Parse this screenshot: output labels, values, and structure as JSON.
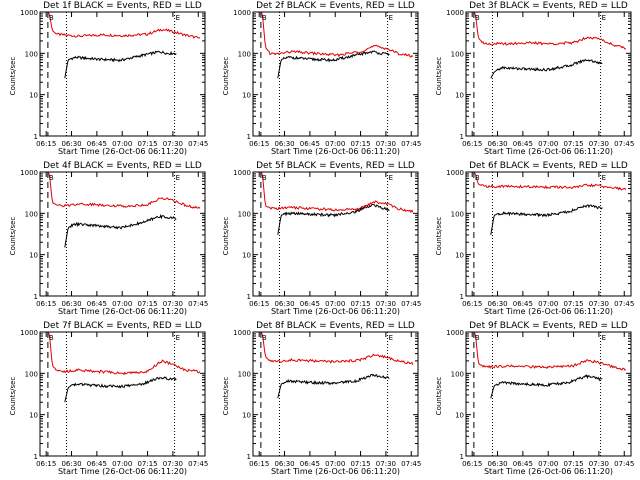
{
  "chart_data": {
    "type": "line",
    "shared": {
      "xlabel": "Start Time (26-Oct-06 06:11:20)",
      "ylabel": "Counts/sec",
      "x_ticks": [
        "06:15",
        "06:30",
        "06:45",
        "07:00",
        "07:15",
        "07:30",
        "07:45"
      ],
      "x_range": [
        "06:11:20",
        "07:49:00"
      ],
      "y_scale": "log",
      "y_range": [
        1,
        1000
      ],
      "y_ticks": [
        "1",
        "10",
        "100",
        "1000"
      ],
      "markers": [
        {
          "type": "dashed",
          "time": "06:16:00"
        },
        {
          "type": "dotted",
          "time": "06:27:00"
        },
        {
          "type": "dotted",
          "time": "07:31:00"
        }
      ],
      "corner_labels": [
        "B",
        "E"
      ],
      "series_colors": {
        "events": "#000000",
        "lld": "#e00000"
      }
    },
    "panels": [
      {
        "title": "Det 1f BLACK = Events, RED = LLD",
        "series": [
          {
            "key": "lld",
            "start": "06:16:00",
            "end": "07:46:00",
            "t": [
              0,
              0.01,
              0.03,
              0.06,
              0.1,
              0.2,
              0.35,
              0.5,
              0.65,
              0.75,
              0.83,
              0.9,
              1
            ],
            "v": [
              1000,
              900,
              350,
              290,
              280,
              260,
              280,
              270,
              290,
              380,
              330,
              280,
              230
            ]
          },
          {
            "key": "events",
            "start": "06:26:00",
            "end": "07:32:00",
            "t": [
              0,
              0.03,
              0.06,
              0.1,
              0.3,
              0.5,
              0.7,
              0.85,
              0.92,
              1
            ],
            "v": [
              25,
              70,
              75,
              80,
              72,
              68,
              90,
              110,
              100,
              100
            ]
          }
        ]
      },
      {
        "title": "Det 2f BLACK = Events, RED = LLD",
        "series": [
          {
            "key": "lld",
            "start": "06:16:00",
            "end": "07:46:00",
            "t": [
              0,
              0.01,
              0.03,
              0.06,
              0.1,
              0.2,
              0.35,
              0.5,
              0.65,
              0.75,
              0.83,
              0.9,
              1
            ],
            "v": [
              1000,
              900,
              140,
              100,
              95,
              110,
              100,
              90,
              110,
              150,
              130,
              100,
              85
            ]
          },
          {
            "key": "events",
            "start": "06:26:00",
            "end": "07:32:00",
            "t": [
              0,
              0.03,
              0.06,
              0.1,
              0.3,
              0.5,
              0.7,
              0.85,
              0.92,
              1
            ],
            "v": [
              25,
              70,
              75,
              80,
              72,
              68,
              90,
              110,
              100,
              95
            ]
          }
        ]
      },
      {
        "title": "Det 3f BLACK = Events, RED = LLD",
        "series": [
          {
            "key": "lld",
            "start": "06:16:00",
            "end": "07:46:00",
            "t": [
              0,
              0.01,
              0.03,
              0.06,
              0.1,
              0.2,
              0.35,
              0.5,
              0.65,
              0.75,
              0.83,
              0.9,
              1
            ],
            "v": [
              1000,
              900,
              230,
              180,
              170,
              170,
              180,
              170,
              180,
              250,
              220,
              170,
              130
            ]
          },
          {
            "key": "events",
            "start": "06:26:00",
            "end": "07:32:00",
            "t": [
              0,
              0.03,
              0.06,
              0.1,
              0.3,
              0.5,
              0.7,
              0.85,
              0.92,
              1
            ],
            "v": [
              25,
              35,
              40,
              45,
              42,
              40,
              50,
              70,
              65,
              55
            ]
          }
        ]
      },
      {
        "title": "Det 4f BLACK = Events, RED = LLD",
        "series": [
          {
            "key": "lld",
            "start": "06:16:00",
            "end": "07:46:00",
            "t": [
              0,
              0.01,
              0.03,
              0.06,
              0.1,
              0.2,
              0.35,
              0.5,
              0.65,
              0.75,
              0.83,
              0.9,
              1
            ],
            "v": [
              1000,
              900,
              180,
              160,
              150,
              170,
              160,
              150,
              160,
              240,
              200,
              160,
              130
            ]
          },
          {
            "key": "events",
            "start": "06:26:00",
            "end": "07:32:00",
            "t": [
              0,
              0.03,
              0.06,
              0.1,
              0.3,
              0.5,
              0.7,
              0.85,
              0.92,
              1
            ],
            "v": [
              15,
              45,
              50,
              55,
              50,
              45,
              60,
              85,
              80,
              75
            ]
          }
        ]
      },
      {
        "title": "Det 5f BLACK = Events, RED = LLD",
        "series": [
          {
            "key": "lld",
            "start": "06:16:00",
            "end": "07:46:00",
            "t": [
              0,
              0.01,
              0.03,
              0.06,
              0.1,
              0.2,
              0.35,
              0.5,
              0.65,
              0.75,
              0.83,
              0.9,
              1
            ],
            "v": [
              1000,
              900,
              150,
              135,
              130,
              140,
              130,
              120,
              130,
              190,
              170,
              130,
              110
            ]
          },
          {
            "key": "events",
            "start": "06:26:00",
            "end": "07:32:00",
            "t": [
              0,
              0.03,
              0.06,
              0.1,
              0.3,
              0.5,
              0.7,
              0.85,
              0.92,
              1
            ],
            "v": [
              30,
              90,
              95,
              100,
              95,
              90,
              110,
              160,
              140,
              120
            ]
          }
        ]
      },
      {
        "title": "Det 6f BLACK = Events, RED = LLD",
        "series": [
          {
            "key": "lld",
            "start": "06:16:00",
            "end": "07:46:00",
            "t": [
              0,
              0.01,
              0.03,
              0.06,
              0.1,
              0.2,
              0.35,
              0.5,
              0.65,
              0.75,
              0.83,
              0.9,
              1
            ],
            "v": [
              1000,
              900,
              500,
              460,
              450,
              450,
              440,
              430,
              420,
              480,
              460,
              420,
              380
            ]
          },
          {
            "key": "events",
            "start": "06:26:00",
            "end": "07:32:00",
            "t": [
              0,
              0.03,
              0.06,
              0.1,
              0.3,
              0.5,
              0.7,
              0.85,
              0.92,
              1
            ],
            "v": [
              30,
              90,
              95,
              100,
              95,
              90,
              110,
              150,
              150,
              130
            ]
          }
        ]
      },
      {
        "title": "Det 7f BLACK = Events, RED = LLD",
        "series": [
          {
            "key": "lld",
            "start": "06:16:00",
            "end": "07:46:00",
            "t": [
              0,
              0.01,
              0.03,
              0.06,
              0.1,
              0.2,
              0.35,
              0.5,
              0.65,
              0.75,
              0.83,
              0.9,
              1
            ],
            "v": [
              1000,
              900,
              150,
              120,
              110,
              120,
              110,
              100,
              110,
              200,
              160,
              120,
              110
            ]
          },
          {
            "key": "events",
            "start": "06:26:00",
            "end": "07:32:00",
            "t": [
              0,
              0.03,
              0.06,
              0.1,
              0.3,
              0.5,
              0.7,
              0.85,
              0.92,
              1
            ],
            "v": [
              20,
              45,
              50,
              55,
              50,
              48,
              55,
              80,
              75,
              70
            ]
          }
        ]
      },
      {
        "title": "Det 8f BLACK = Events, RED = LLD",
        "series": [
          {
            "key": "lld",
            "start": "06:16:00",
            "end": "07:46:00",
            "t": [
              0,
              0.01,
              0.03,
              0.06,
              0.1,
              0.2,
              0.35,
              0.5,
              0.65,
              0.75,
              0.83,
              0.9,
              1
            ],
            "v": [
              1000,
              900,
              250,
              200,
              190,
              210,
              200,
              190,
              210,
              280,
              240,
              200,
              170
            ]
          },
          {
            "key": "events",
            "start": "06:26:00",
            "end": "07:32:00",
            "t": [
              0,
              0.03,
              0.06,
              0.1,
              0.3,
              0.5,
              0.7,
              0.85,
              0.92,
              1
            ],
            "v": [
              25,
              55,
              60,
              65,
              60,
              58,
              65,
              90,
              85,
              75
            ]
          }
        ]
      },
      {
        "title": "Det 9f BLACK = Events, RED = LLD",
        "series": [
          {
            "key": "lld",
            "start": "06:16:00",
            "end": "07:46:00",
            "t": [
              0,
              0.01,
              0.03,
              0.06,
              0.1,
              0.2,
              0.35,
              0.5,
              0.65,
              0.75,
              0.83,
              0.9,
              1
            ],
            "v": [
              1000,
              900,
              170,
              150,
              145,
              150,
              145,
              140,
              150,
              210,
              180,
              150,
              120
            ]
          },
          {
            "key": "events",
            "start": "06:26:00",
            "end": "07:32:00",
            "t": [
              0,
              0.03,
              0.06,
              0.1,
              0.3,
              0.5,
              0.7,
              0.85,
              0.92,
              1
            ],
            "v": [
              25,
              50,
              55,
              60,
              55,
              52,
              60,
              85,
              80,
              70
            ]
          }
        ]
      }
    ]
  }
}
